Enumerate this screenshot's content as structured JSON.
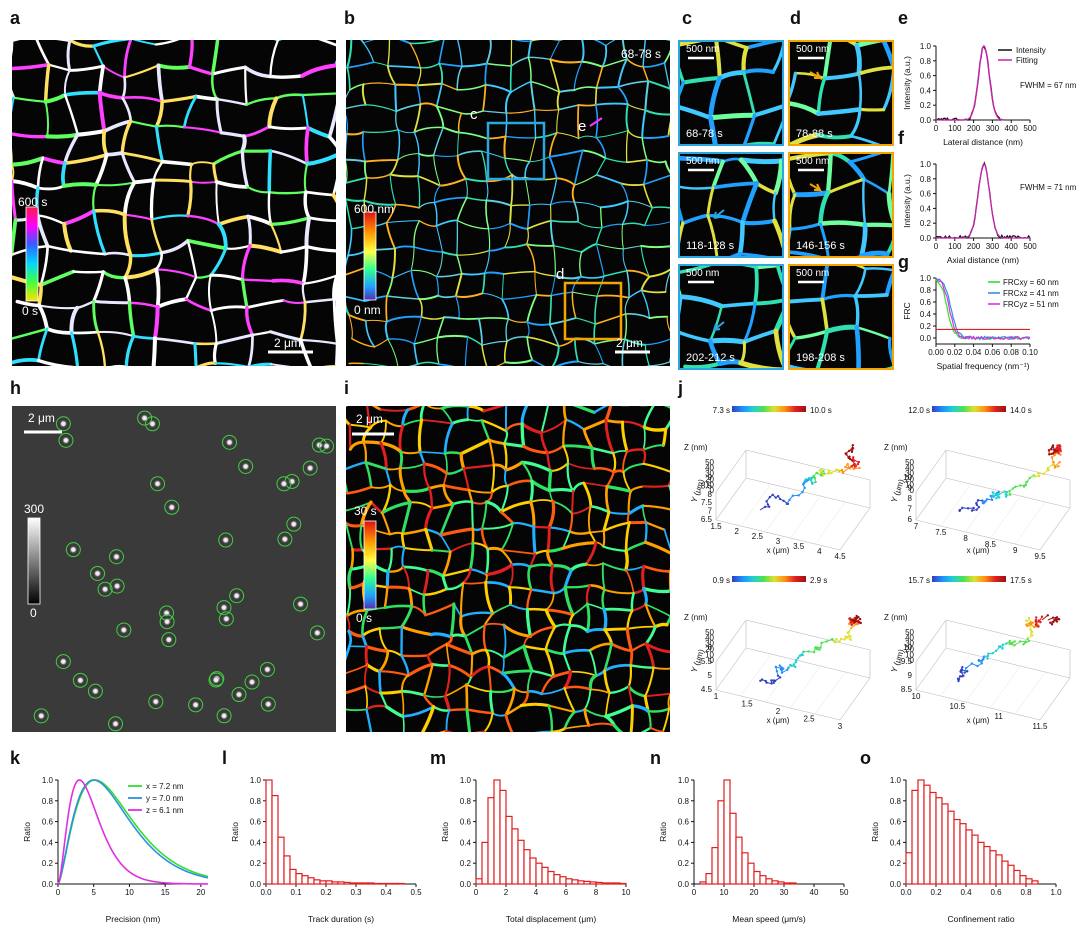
{
  "panel_labels": {
    "a": "a",
    "b": "b",
    "c": "c",
    "d": "d",
    "e": "e",
    "f": "f",
    "g": "g",
    "h": "h",
    "i": "i",
    "j": "j",
    "k": "k",
    "l": "l",
    "m": "m",
    "n": "n",
    "o": "o"
  },
  "panel_a": {
    "cbar_top": "600 s",
    "cbar_bottom": "0 s",
    "scalebar": "2 μm"
  },
  "panel_b": {
    "time": "68-78 s",
    "cbar_top": "600 nm",
    "cbar_bottom": "0 nm",
    "scalebar": "2 μm",
    "box_c": "c",
    "box_d": "d",
    "line_e": "e"
  },
  "panel_c": {
    "scalebar": "500 nm",
    "times": [
      "68-78 s",
      "118-128 s",
      "202-212 s"
    ]
  },
  "panel_d": {
    "scalebar": "500 nm",
    "times": [
      "78-88 s",
      "146-156 s",
      "198-208 s"
    ]
  },
  "panel_h": {
    "scalebar": "2 μm",
    "cbar_top": "300",
    "cbar_bottom": "0"
  },
  "panel_i": {
    "scalebar": "2 μm",
    "cbar_top": "30 s",
    "cbar_bottom": "0 s"
  },
  "panel_j": {
    "axis_z": "Z (nm)",
    "axis_y": "Y (μm)",
    "axis_x": "x (μm)",
    "tracks": [
      {
        "t_start": "7.3 s",
        "t_end": "10.0 s",
        "z_ticks": [
          "50",
          "40",
          "30",
          "20",
          "10",
          "0"
        ],
        "y_ticks": [
          "9",
          "8.5",
          "8",
          "7.5",
          "7",
          "6.5"
        ],
        "x_ticks": [
          "1.5",
          "2",
          "2.5",
          "3",
          "3.5",
          "4",
          "4.5"
        ]
      },
      {
        "t_start": "12.0 s",
        "t_end": "14.0 s",
        "z_ticks": [
          "50",
          "40",
          "30",
          "20",
          "10",
          "0"
        ],
        "y_ticks": [
          "10",
          "9",
          "8",
          "7",
          "6"
        ],
        "x_ticks": [
          "7",
          "7.5",
          "8",
          "8.5",
          "9",
          "9.5"
        ]
      },
      {
        "t_start": "0.9 s",
        "t_end": "2.9 s",
        "z_ticks": [
          "50",
          "40",
          "30",
          "20",
          "10",
          "0"
        ],
        "y_ticks": [
          "6",
          "5.5",
          "5",
          "4.5"
        ],
        "x_ticks": [
          "1",
          "1.5",
          "2",
          "2.5",
          "3"
        ]
      },
      {
        "t_start": "15.7 s",
        "t_end": "17.5 s",
        "z_ticks": [
          "50",
          "40",
          "30",
          "20",
          "10",
          "0"
        ],
        "y_ticks": [
          "10",
          "9.5",
          "9",
          "8.5"
        ],
        "x_ticks": [
          "10",
          "10.5",
          "11",
          "11.5"
        ]
      }
    ]
  },
  "chart_data": [
    {
      "id": "e",
      "type": "line",
      "xlabel": "Lateral distance (nm)",
      "ylabel": "Intensity (a.u.)",
      "xlim": [
        0,
        500
      ],
      "ylim": [
        0,
        1.0
      ],
      "xticks": [
        "0",
        "100",
        "200",
        "300",
        "400",
        "500"
      ],
      "yticks": [
        "0.0",
        "0.2",
        "0.4",
        "0.6",
        "0.8",
        "1.0"
      ],
      "legend": [
        "Intensity",
        "Fitting"
      ],
      "annotation": "FWHM = 67 nm",
      "center": 255,
      "fwhm": 67
    },
    {
      "id": "f",
      "type": "line",
      "xlabel": "Axial distance (nm)",
      "ylabel": "Intensity (a.u.)",
      "xlim": [
        0,
        500
      ],
      "ylim": [
        0,
        1.0
      ],
      "xticks": [
        "0",
        "100",
        "200",
        "300",
        "400",
        "500"
      ],
      "yticks": [
        "0.0",
        "0.2",
        "0.4",
        "0.6",
        "0.8",
        "1.0"
      ],
      "annotation": "FWHM = 71 nm",
      "center": 255,
      "fwhm": 71
    },
    {
      "id": "g",
      "type": "line",
      "xlabel": "Spatial frequency (nm⁻¹)",
      "ylabel": "FRC",
      "xlim": [
        0,
        0.1
      ],
      "ylim": [
        -0.1,
        1.0
      ],
      "xticks": [
        "0.00",
        "0.02",
        "0.04",
        "0.06",
        "0.08",
        "0.10"
      ],
      "yticks": [
        "0.0",
        "0.2",
        "0.4",
        "0.6",
        "0.8",
        "1.0"
      ],
      "legend": [
        "FRCxy = 60 nm",
        "FRCxz = 41 nm",
        "FRCyz = 51 nm"
      ],
      "threshold": 0.143
    },
    {
      "id": "k",
      "type": "line",
      "xlabel": "Precision (nm)",
      "ylabel": "Ratio",
      "xlim": [
        0,
        21
      ],
      "ylim": [
        0,
        1.0
      ],
      "xticks": [
        "0",
        "5",
        "10",
        "15",
        "20"
      ],
      "yticks": [
        "0.0",
        "0.2",
        "0.4",
        "0.6",
        "0.8",
        "1.0"
      ],
      "legend": [
        "x = 7.2 nm",
        "y = 7.0 nm",
        "z = 6.1 nm"
      ],
      "peaks": [
        5.2,
        5.0,
        3.0
      ]
    },
    {
      "id": "l",
      "type": "bar",
      "xlabel": "Track duration (s)",
      "ylabel": "Ratio",
      "xlim": [
        0,
        0.5
      ],
      "ylim": [
        0,
        1.0
      ],
      "xticks": [
        "0.0",
        "0.1",
        "0.2",
        "0.3",
        "0.4",
        "0.5"
      ],
      "yticks": [
        "0.0",
        "0.2",
        "0.4",
        "0.6",
        "0.8",
        "1.0"
      ],
      "bin_width": 0.02,
      "values": [
        1.0,
        0.85,
        0.45,
        0.27,
        0.14,
        0.1,
        0.08,
        0.06,
        0.04,
        0.03,
        0.03,
        0.02,
        0.02,
        0.015,
        0.01,
        0.01,
        0.01,
        0.01,
        0.005,
        0.005,
        0.005,
        0.005,
        0.005
      ]
    },
    {
      "id": "m",
      "type": "bar",
      "xlabel": "Total displacement (μm)",
      "ylabel": "Ratio",
      "xlim": [
        0,
        10
      ],
      "ylim": [
        0,
        1.0
      ],
      "xticks": [
        "0",
        "2",
        "4",
        "6",
        "8",
        "10"
      ],
      "yticks": [
        "0.0",
        "0.2",
        "0.4",
        "0.6",
        "0.8",
        "1.0"
      ],
      "bin_width": 0.4,
      "values": [
        0.05,
        0.4,
        0.83,
        1.0,
        0.9,
        0.65,
        0.53,
        0.42,
        0.33,
        0.25,
        0.2,
        0.16,
        0.12,
        0.09,
        0.07,
        0.05,
        0.04,
        0.03,
        0.025,
        0.02,
        0.015,
        0.01,
        0.01,
        0.01,
        0.005
      ]
    },
    {
      "id": "n",
      "type": "bar",
      "xlabel": "Mean speed (μm/s)",
      "ylabel": "Ratio",
      "xlim": [
        0,
        50
      ],
      "ylim": [
        0,
        1.0
      ],
      "xticks": [
        "0",
        "10",
        "20",
        "30",
        "40",
        "50"
      ],
      "yticks": [
        "0.0",
        "0.2",
        "0.4",
        "0.6",
        "0.8",
        "1.0"
      ],
      "bin_width": 2,
      "values": [
        0.0,
        0.02,
        0.1,
        0.35,
        0.8,
        1.0,
        0.68,
        0.45,
        0.3,
        0.2,
        0.12,
        0.08,
        0.05,
        0.03,
        0.02,
        0.01,
        0.01
      ]
    },
    {
      "id": "o",
      "type": "bar",
      "xlabel": "Confinement ratio",
      "ylabel": "Ratio",
      "xlim": [
        0,
        1.0
      ],
      "ylim": [
        0,
        1.0
      ],
      "xticks": [
        "0.0",
        "0.2",
        "0.4",
        "0.6",
        "0.8",
        "1.0"
      ],
      "yticks": [
        "0.0",
        "0.2",
        "0.4",
        "0.6",
        "0.8",
        "1.0"
      ],
      "bin_width": 0.04,
      "values": [
        0.3,
        0.9,
        1.0,
        0.95,
        0.88,
        0.83,
        0.77,
        0.7,
        0.62,
        0.58,
        0.52,
        0.47,
        0.4,
        0.36,
        0.32,
        0.28,
        0.22,
        0.18,
        0.13,
        0.08,
        0.05,
        0.03
      ]
    }
  ]
}
